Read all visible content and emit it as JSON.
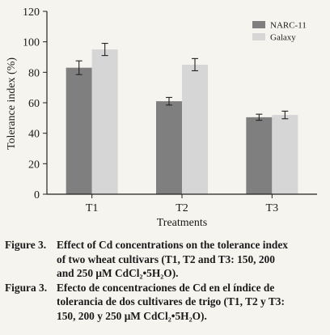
{
  "chart_data": {
    "type": "bar",
    "categories": [
      "T1",
      "T2",
      "T3"
    ],
    "series": [
      {
        "name": "NARC-11",
        "values": [
          83,
          61,
          50.5
        ],
        "errors": [
          4.5,
          2.5,
          2
        ],
        "color": "#7f7f7f"
      },
      {
        "name": "Galaxy",
        "values": [
          95,
          85,
          52
        ],
        "errors": [
          4,
          4,
          2.5
        ],
        "color": "#d6d6d6"
      }
    ],
    "xlabel": "Treatments",
    "ylabel": "Tolerance index (%)",
    "ylim": [
      0,
      120
    ],
    "yticks": [
      "0",
      "20",
      "40",
      "60",
      "80",
      "100",
      "120"
    ],
    "legend_position": "top-right",
    "grid": false
  },
  "caption": {
    "en_label": "Figure 3.",
    "en_lines": [
      "Effect of Cd concentrations on the tolerance index",
      "of two wheat cultivars (T1, T2 and T3: 150, 200",
      "and 250 μM CdCl₂•5H₂O)."
    ],
    "es_label": "Figura 3.",
    "es_lines": [
      "Efecto de concentraciones de Cd en el índice de",
      "tolerancia de dos cultivares de trigo (T1, T2 y T3:",
      "150, 200 y 250 μM CdCl₂•5H₂O)."
    ]
  }
}
